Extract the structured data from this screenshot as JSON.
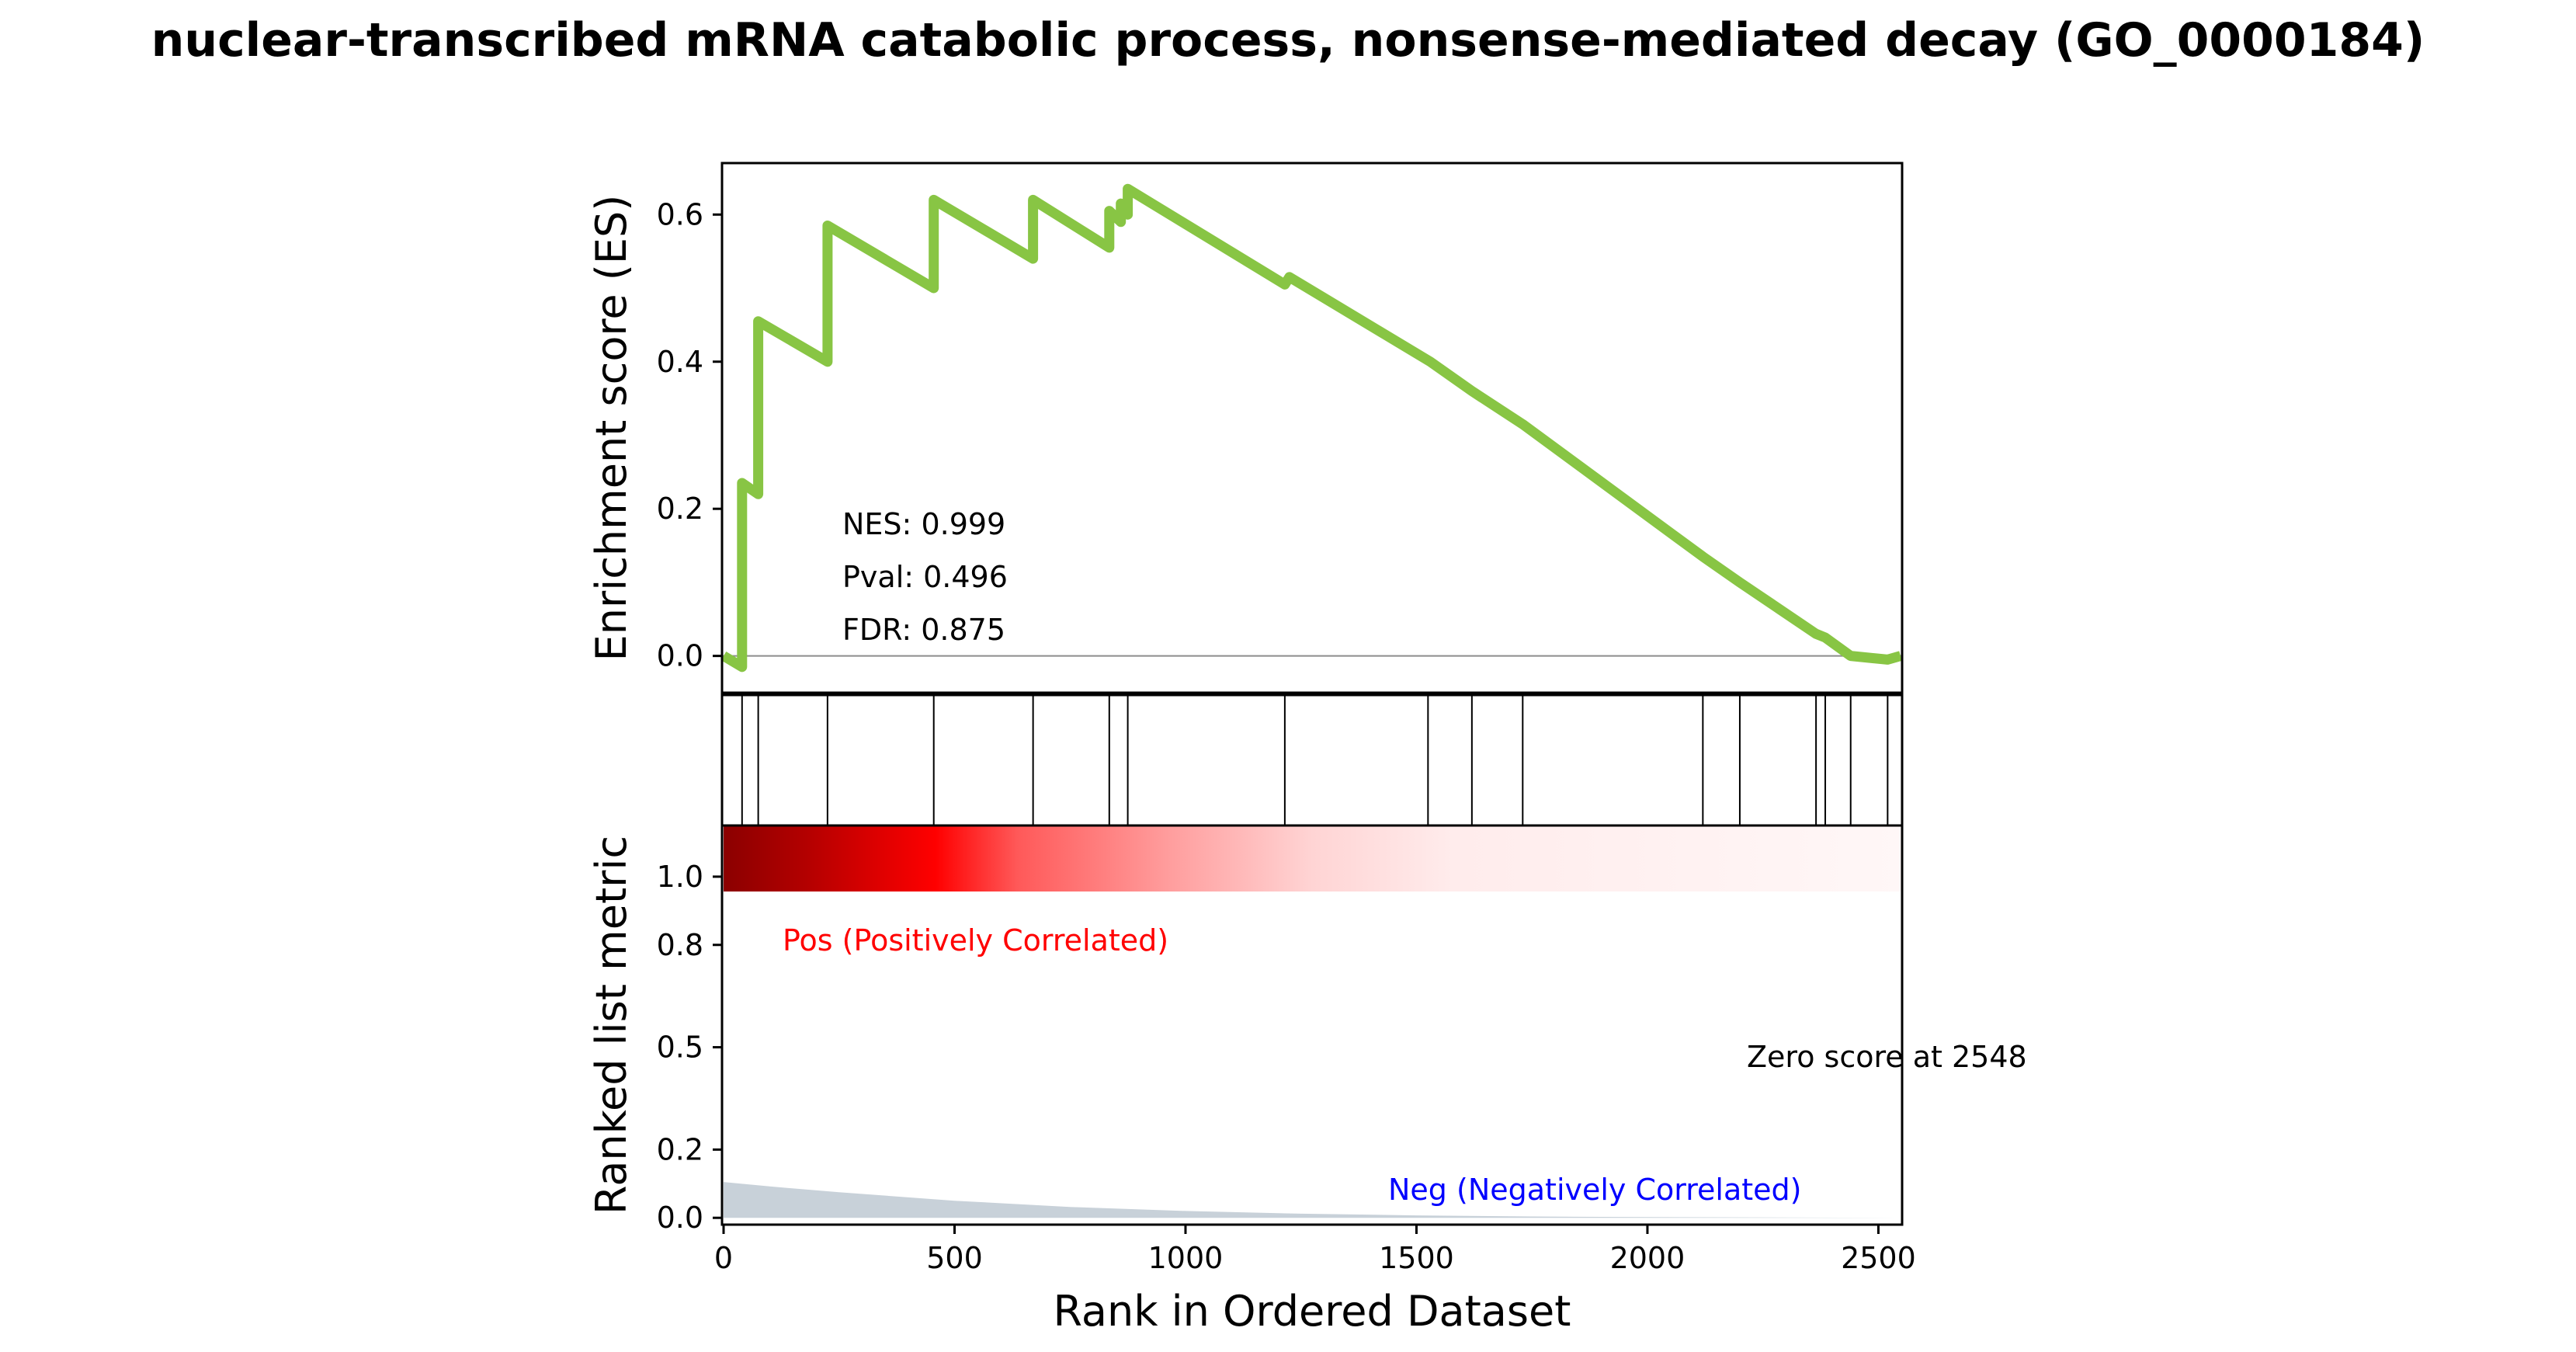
{
  "chart_data": {
    "type": "line",
    "title": "nuclear-transcribed mRNA catabolic process, nonsense-mediated decay (GO_0000184)",
    "xlabel": "Rank in Ordered Dataset",
    "xlim": [
      0,
      2548
    ],
    "x_ticks": [
      "0",
      "500",
      "1000",
      "1500",
      "2000",
      "2500"
    ],
    "panels": {
      "enrichment": {
        "ylabel": "Enrichment score (ES)",
        "ylim": [
          -0.05,
          0.67
        ],
        "y_ticks": [
          "0.0",
          "0.2",
          "0.4",
          "0.6"
        ],
        "line_color": "#88c544",
        "series": [
          {
            "x": [
              0,
              40,
              40,
              75,
              75,
              225,
              225,
              455,
              455,
              670,
              670,
              835,
              835,
              860,
              860,
              875,
              875,
              1215,
              1225,
              1530,
              1620,
              1730,
              2120,
              2200,
              2365,
              2385,
              2440,
              2520,
              2548
            ],
            "y": [
              0.0,
              -0.015,
              0.235,
              0.22,
              0.455,
              0.4,
              0.585,
              0.5,
              0.62,
              0.54,
              0.62,
              0.555,
              0.605,
              0.59,
              0.615,
              0.6,
              0.635,
              0.505,
              0.515,
              0.4,
              0.36,
              0.315,
              0.135,
              0.1,
              0.03,
              0.025,
              0.0,
              -0.005,
              0.0
            ]
          }
        ],
        "stats": [
          {
            "label": "NES: 0.999",
            "value": 0.999
          },
          {
            "label": "Pval: 0.496",
            "value": 0.496
          },
          {
            "label": "FDR: 0.875",
            "value": 0.875
          }
        ]
      },
      "hits": {
        "positions": [
          40,
          75,
          225,
          455,
          670,
          835,
          875,
          1215,
          1525,
          1620,
          1730,
          2120,
          2200,
          2365,
          2385,
          2440,
          2520
        ]
      },
      "heatmap": {
        "colors": [
          "#8b0000",
          "#b30000",
          "#ff0000",
          "#ff5959",
          "#ff9e9e",
          "#ffd4d4",
          "#ffecec",
          "#fff7f7"
        ],
        "stops": [
          0,
          0.07,
          0.18,
          0.25,
          0.38,
          0.5,
          0.62,
          1
        ]
      },
      "ranked_metric": {
        "ylabel": "Ranked list metric",
        "ylim": [
          -0.02,
          1.15
        ],
        "y_ticks": [
          "0.0",
          "0.2",
          "0.5",
          "0.8",
          "1.0"
        ],
        "y_tick_values": [
          0.0,
          0.2,
          0.5,
          0.8,
          1.0
        ],
        "fill_color": "#c8d1d9",
        "x": [
          0,
          100,
          250,
          500,
          750,
          1000,
          1250,
          1500,
          1750,
          2000,
          2548
        ],
        "y": [
          0.105,
          0.092,
          0.075,
          0.05,
          0.032,
          0.02,
          0.012,
          0.007,
          0.004,
          0.002,
          0.0
        ],
        "pos_label": "Pos (Positively Correlated)",
        "neg_label": "Neg (Negatively Correlated)",
        "zero_label": "Zero score at 2548",
        "pos_color": "#ff0000",
        "neg_color": "#0000ff"
      }
    }
  }
}
